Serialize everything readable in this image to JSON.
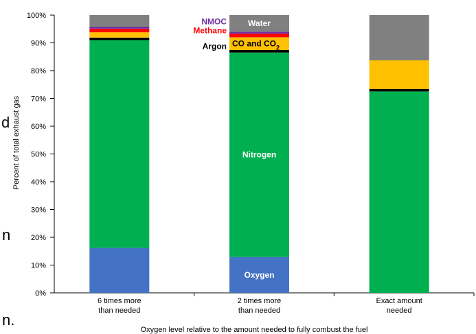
{
  "chart_data": {
    "type": "bar",
    "stacked": true,
    "categories": [
      [
        "6 times more",
        "than needed"
      ],
      [
        "2 times more",
        "than needed"
      ],
      [
        "Exact amount",
        "needed"
      ]
    ],
    "series": [
      {
        "name": "Oxygen",
        "color": "#4472C4",
        "values": [
          16.2,
          12.9,
          0
        ]
      },
      {
        "name": "Nitrogen",
        "color": "#00B050",
        "values": [
          74.8,
          73.6,
          72.5
        ]
      },
      {
        "name": "Argon",
        "color": "#000000",
        "values": [
          0.9,
          0.9,
          0.9
        ]
      },
      {
        "name": "CO and CO2",
        "color": "#FFC000",
        "values": [
          1.9,
          4.6,
          10.3
        ]
      },
      {
        "name": "Methane",
        "color": "#FF0000",
        "values": [
          1.3,
          1.3,
          0
        ]
      },
      {
        "name": "NMOC",
        "color": "#7030A0",
        "values": [
          0.7,
          0.7,
          0
        ]
      },
      {
        "name": "Water",
        "color": "#808080",
        "values": [
          4.2,
          6.0,
          16.3
        ]
      }
    ],
    "ylabel": "Percent of total exhaust gas",
    "xlabel": "Oxygen level relative to the amount needed to fully combust the fuel",
    "ylim": [
      0,
      100
    ],
    "yticks": [
      "0%",
      "10%",
      "20%",
      "30%",
      "40%",
      "50%",
      "60%",
      "70%",
      "80%",
      "90%",
      "100%"
    ],
    "annotations": [
      {
        "text": "NMOC",
        "color": "#7030A0"
      },
      {
        "text": "Methane",
        "color": "#FF0000"
      },
      {
        "text": "Argon",
        "color": "#000000"
      },
      {
        "text": "Water",
        "color": "#FFFFFF"
      },
      {
        "text": "CO and CO",
        "sub": "2",
        "color": "#000000"
      },
      {
        "text": "Nitrogen",
        "color": "#FFFFFF"
      },
      {
        "text": "Oxygen",
        "color": "#FFFFFF"
      }
    ]
  },
  "background_fragments": [
    "d",
    "n",
    "n."
  ]
}
